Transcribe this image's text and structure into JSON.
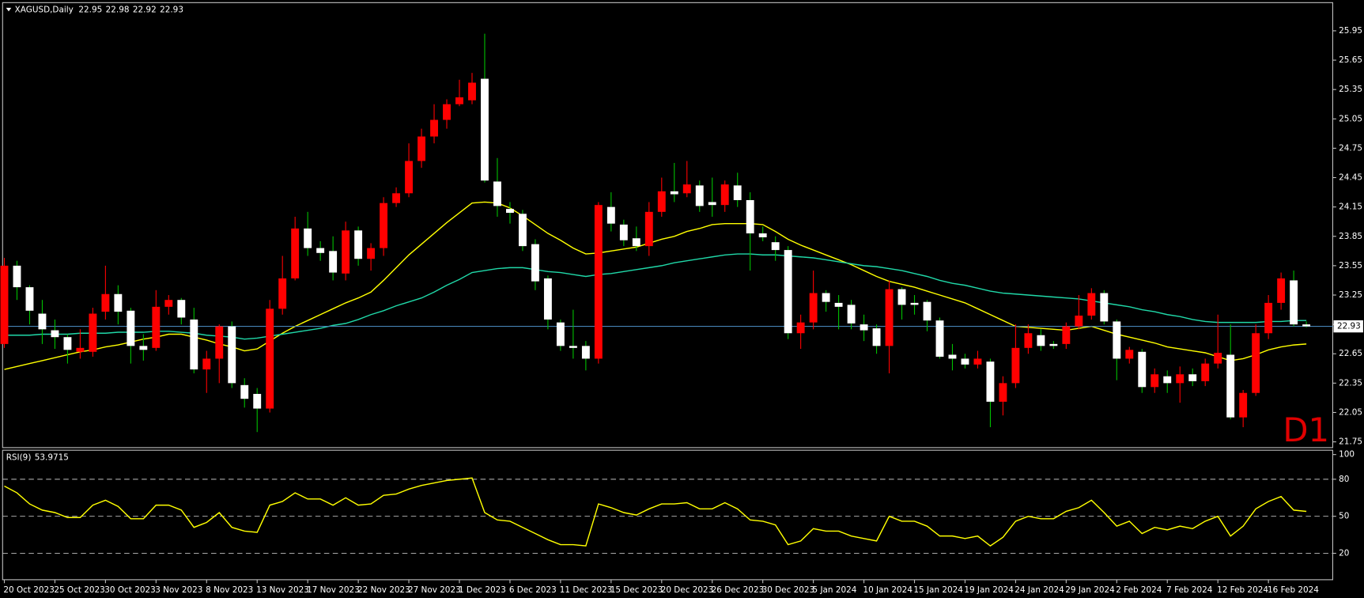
{
  "chart_data": [
    {
      "type": "candlestick",
      "title": "XAGUSD,Daily",
      "timeframe": "D1",
      "categories": [
        "20 Oct 2023",
        null,
        null,
        null,
        "25 Oct 2023",
        null,
        null,
        null,
        "30 Oct 2023",
        null,
        null,
        null,
        "3 Nov 2023",
        null,
        null,
        null,
        "8 Nov 2023",
        null,
        null,
        null,
        "13 Nov 2023",
        null,
        null,
        null,
        "17 Nov 2023",
        null,
        null,
        null,
        "22 Nov 2023",
        null,
        null,
        null,
        "27 Nov 2023",
        null,
        null,
        null,
        "1 Dec 2023",
        null,
        null,
        null,
        "6 Dec 2023",
        null,
        null,
        null,
        "11 Dec 2023",
        null,
        null,
        null,
        "15 Dec 2023",
        null,
        null,
        null,
        "20 Dec 2023",
        null,
        null,
        null,
        "26 Dec 2023",
        null,
        null,
        null,
        "30 Dec 2023",
        null,
        null,
        null,
        "5 Jan 2024",
        null,
        null,
        null,
        "10 Jan 2024",
        null,
        null,
        null,
        "15 Jan 2024",
        null,
        null,
        null,
        "19 Jan 2024",
        null,
        null,
        null,
        "24 Jan 2024",
        null,
        null,
        null,
        "29 Jan 2024",
        null,
        null,
        null,
        "2 Feb 2024",
        null,
        null,
        null,
        "7 Feb 2024",
        null,
        null,
        null,
        "12 Feb 2024",
        null,
        null,
        null,
        "16 Feb 2024",
        null,
        null,
        null
      ],
      "open": [
        22.75,
        23.55,
        23.33,
        23.06,
        22.89,
        22.82,
        22.67,
        22.67,
        23.08,
        23.26,
        23.09,
        22.73,
        22.71,
        23.13,
        23.2,
        23.0,
        22.49,
        22.6,
        22.93,
        22.33,
        22.24,
        22.09,
        23.11,
        23.42,
        23.93,
        23.73,
        23.7,
        23.47,
        23.91,
        23.62,
        23.73,
        24.19,
        24.29,
        24.62,
        24.87,
        25.04,
        25.2,
        25.24,
        25.46,
        24.41,
        24.13,
        24.08,
        23.77,
        23.42,
        22.97,
        22.73,
        22.73,
        22.6,
        24.15,
        23.97,
        23.83,
        23.75,
        24.1,
        24.31,
        24.29,
        24.37,
        24.2,
        24.17,
        24.37,
        24.22,
        23.88,
        23.79,
        23.71,
        22.86,
        22.97,
        23.27,
        23.17,
        23.15,
        22.95,
        22.91,
        22.73,
        23.31,
        23.17,
        23.18,
        22.99,
        22.64,
        22.6,
        22.54,
        22.57,
        22.16,
        22.35,
        22.71,
        22.84,
        22.75,
        22.75,
        22.93,
        23.04,
        23.27,
        22.98,
        22.6,
        22.67,
        22.31,
        22.42,
        22.35,
        22.44,
        22.37,
        22.55,
        22.64,
        22.0,
        22.25,
        22.86,
        23.17,
        23.4,
        22.95
      ],
      "high": [
        23.63,
        23.6,
        23.35,
        23.2,
        23.0,
        22.85,
        22.9,
        23.12,
        23.55,
        23.35,
        23.12,
        22.85,
        23.3,
        23.25,
        23.22,
        23.12,
        22.68,
        22.95,
        22.98,
        22.4,
        22.3,
        23.2,
        23.65,
        24.05,
        24.1,
        23.8,
        23.85,
        24.0,
        23.95,
        23.78,
        24.25,
        24.35,
        24.8,
        24.95,
        25.2,
        25.25,
        25.45,
        25.52,
        25.92,
        24.65,
        24.2,
        24.12,
        23.82,
        23.45,
        23.0,
        23.1,
        22.78,
        24.2,
        24.3,
        24.02,
        23.95,
        24.2,
        24.45,
        24.6,
        24.62,
        24.42,
        24.45,
        24.42,
        24.5,
        24.3,
        23.95,
        23.85,
        23.75,
        23.05,
        23.5,
        23.3,
        23.25,
        23.2,
        23.05,
        22.95,
        23.4,
        23.33,
        23.25,
        23.2,
        23.02,
        22.75,
        22.65,
        22.68,
        22.6,
        22.42,
        22.95,
        22.95,
        22.9,
        22.78,
        22.97,
        23.25,
        23.32,
        23.3,
        23.0,
        22.72,
        22.7,
        22.5,
        22.48,
        22.52,
        22.5,
        22.6,
        23.05,
        22.95,
        22.28,
        22.95,
        23.25,
        23.48,
        23.5,
        22.98
      ],
      "low": [
        22.71,
        23.2,
        22.95,
        22.75,
        22.7,
        22.55,
        22.6,
        22.62,
        23.0,
        22.95,
        22.55,
        22.58,
        22.68,
        23.05,
        22.95,
        22.45,
        22.25,
        22.35,
        22.3,
        22.1,
        21.85,
        22.05,
        23.05,
        23.4,
        23.65,
        23.6,
        23.4,
        23.4,
        23.55,
        23.5,
        23.65,
        24.15,
        24.25,
        24.55,
        24.8,
        24.95,
        25.18,
        25.2,
        24.4,
        24.05,
        23.98,
        23.7,
        23.3,
        22.9,
        22.68,
        22.6,
        22.48,
        22.55,
        23.9,
        23.75,
        23.7,
        23.65,
        24.05,
        24.2,
        24.25,
        24.1,
        24.05,
        24.1,
        24.15,
        23.5,
        23.8,
        23.6,
        22.8,
        22.7,
        22.9,
        23.08,
        22.9,
        22.9,
        22.78,
        22.65,
        22.45,
        23.0,
        23.05,
        22.88,
        22.6,
        22.48,
        22.5,
        22.5,
        21.9,
        22.02,
        22.3,
        22.65,
        22.68,
        22.7,
        22.7,
        22.9,
        23.0,
        22.95,
        22.38,
        22.55,
        22.25,
        22.25,
        22.25,
        22.15,
        22.32,
        22.32,
        22.5,
        21.98,
        21.9,
        22.22,
        22.8,
        23.1,
        22.93,
        22.92
      ],
      "close": [
        23.55,
        23.33,
        23.09,
        22.9,
        22.82,
        22.69,
        22.71,
        23.06,
        23.26,
        23.08,
        22.73,
        22.69,
        23.13,
        23.2,
        23.02,
        22.49,
        22.6,
        22.93,
        22.35,
        22.19,
        22.09,
        23.11,
        23.42,
        23.93,
        23.73,
        23.68,
        23.48,
        23.91,
        23.62,
        23.73,
        24.19,
        24.29,
        24.62,
        24.87,
        25.04,
        25.2,
        25.27,
        25.42,
        24.42,
        24.16,
        24.09,
        23.75,
        23.39,
        23.0,
        22.73,
        22.71,
        22.6,
        24.17,
        23.98,
        23.81,
        23.75,
        24.1,
        24.31,
        24.28,
        24.38,
        24.16,
        24.17,
        24.38,
        24.22,
        23.88,
        23.84,
        23.71,
        22.86,
        22.97,
        23.27,
        23.18,
        23.13,
        22.96,
        22.89,
        22.73,
        23.31,
        23.15,
        23.15,
        22.99,
        22.62,
        22.6,
        22.54,
        22.6,
        22.16,
        22.35,
        22.71,
        22.86,
        22.73,
        22.73,
        22.93,
        23.04,
        23.27,
        22.98,
        22.6,
        22.69,
        22.31,
        22.44,
        22.35,
        22.44,
        22.37,
        22.55,
        22.66,
        22.0,
        22.25,
        22.86,
        23.17,
        23.42,
        22.95,
        22.93
      ],
      "up_color": "#ff0000",
      "down_color": "#ffffff",
      "down_wick_color": "#00c000",
      "price_line_color": "#4682b4",
      "series": [
        {
          "color": "#ffff00",
          "values": [
            22.49,
            22.52,
            22.55,
            22.58,
            22.61,
            22.64,
            22.67,
            22.69,
            22.72,
            22.74,
            22.77,
            22.8,
            22.82,
            22.85,
            22.85,
            22.82,
            22.79,
            22.75,
            22.72,
            22.68,
            22.7,
            22.78,
            22.86,
            22.93,
            22.99,
            23.05,
            23.11,
            23.17,
            23.22,
            23.28,
            23.4,
            23.53,
            23.66,
            23.77,
            23.88,
            23.99,
            24.09,
            24.19,
            24.2,
            24.19,
            24.14,
            24.06,
            23.97,
            23.88,
            23.81,
            23.73,
            23.67,
            23.68,
            23.7,
            23.72,
            23.74,
            23.78,
            23.82,
            23.85,
            23.9,
            23.93,
            23.97,
            23.98,
            23.98,
            23.98,
            23.97,
            23.9,
            23.82,
            23.76,
            23.71,
            23.66,
            23.61,
            23.56,
            23.5,
            23.44,
            23.39,
            23.36,
            23.33,
            23.29,
            23.25,
            23.21,
            23.17,
            23.11,
            23.05,
            22.99,
            22.93,
            22.92,
            22.91,
            22.9,
            22.89,
            22.91,
            22.93,
            22.89,
            22.85,
            22.82,
            22.79,
            22.76,
            22.72,
            22.7,
            22.68,
            22.66,
            22.62,
            22.58,
            22.6,
            22.64,
            22.69,
            22.72,
            22.74,
            22.75
          ]
        },
        {
          "color": "#20d8a8",
          "values": [
            22.84,
            22.84,
            22.84,
            22.85,
            22.85,
            22.85,
            22.86,
            22.86,
            22.86,
            22.87,
            22.87,
            22.87,
            22.88,
            22.88,
            22.87,
            22.86,
            22.84,
            22.83,
            22.82,
            22.8,
            22.81,
            22.83,
            22.85,
            22.87,
            22.89,
            22.91,
            22.94,
            22.96,
            23.0,
            23.05,
            23.09,
            23.14,
            23.18,
            23.22,
            23.28,
            23.35,
            23.41,
            23.48,
            23.5,
            23.52,
            23.53,
            23.53,
            23.51,
            23.49,
            23.48,
            23.46,
            23.44,
            23.46,
            23.47,
            23.49,
            23.51,
            23.53,
            23.55,
            23.58,
            23.6,
            23.62,
            23.64,
            23.66,
            23.67,
            23.67,
            23.66,
            23.66,
            23.65,
            23.64,
            23.63,
            23.61,
            23.59,
            23.57,
            23.55,
            23.54,
            23.52,
            23.5,
            23.47,
            23.44,
            23.4,
            23.37,
            23.35,
            23.32,
            23.29,
            23.27,
            23.26,
            23.25,
            23.24,
            23.23,
            23.22,
            23.21,
            23.19,
            23.17,
            23.15,
            23.13,
            23.1,
            23.08,
            23.05,
            23.03,
            23.0,
            22.98,
            22.97,
            22.97,
            22.97,
            22.97,
            22.98,
            22.98,
            22.99,
            22.99
          ]
        }
      ],
      "ylim": [
        21.7,
        26.22
      ],
      "yticks": [
        25.95,
        25.65,
        25.35,
        25.05,
        24.75,
        24.45,
        24.15,
        23.85,
        23.55,
        23.25,
        22.95,
        22.65,
        22.35,
        22.05,
        21.75
      ],
      "grid": false
    },
    {
      "type": "line",
      "title": "RSI(9)",
      "series": [
        {
          "color": "#ffff00",
          "values": [
            74.5,
            69,
            60,
            55,
            53,
            49,
            49,
            59,
            63,
            58,
            48,
            48,
            59,
            59,
            55,
            41,
            45,
            53,
            41,
            38,
            37,
            59,
            62,
            69,
            64,
            64,
            59,
            65,
            59,
            60,
            67,
            68,
            72,
            75,
            77,
            79,
            80,
            81,
            53,
            47,
            46,
            41,
            36,
            31,
            27,
            27,
            26,
            60,
            57,
            53,
            51,
            56,
            60,
            60,
            61,
            56,
            56,
            61,
            56,
            47,
            46,
            43,
            27,
            30,
            40,
            38,
            38,
            34,
            32,
            30,
            50,
            46,
            46,
            42,
            34,
            34,
            32,
            34,
            26,
            33,
            46,
            50,
            48,
            48,
            54,
            57,
            63,
            53,
            42,
            46,
            36,
            41,
            39,
            42,
            40,
            46,
            50,
            34,
            42,
            56,
            62,
            66,
            55,
            53.9715
          ]
        }
      ],
      "ylim": [
        0,
        100
      ],
      "yticks": [
        100,
        80,
        50,
        20
      ],
      "grid": true
    }
  ]
}
